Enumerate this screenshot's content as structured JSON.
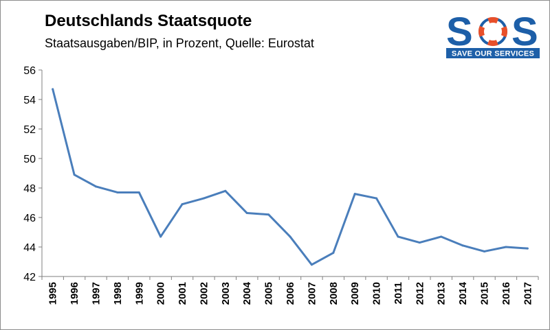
{
  "header": {
    "title": "Deutschlands Staatsquote",
    "subtitle": "Staatsausgaben/BIP, in Prozent, Quelle: Eurostat"
  },
  "logo": {
    "letters": [
      "S",
      "O",
      "S"
    ],
    "tagline": "SAVE OUR SERVICES",
    "brand_blue": "#1d5fa8",
    "ring_orange": "#e8502a"
  },
  "colors": {
    "line": "#4a7ebb",
    "axis": "#7f7f7f"
  },
  "chart_data": {
    "type": "line",
    "title": "Deutschlands Staatsquote",
    "subtitle": "Staatsausgaben/BIP, in Prozent, Quelle: Eurostat",
    "xlabel": "",
    "ylabel": "",
    "categories": [
      "1995",
      "1996",
      "1997",
      "1998",
      "1999",
      "2000",
      "2001",
      "2002",
      "2003",
      "2004",
      "2005",
      "2006",
      "2007",
      "2008",
      "2009",
      "2010",
      "2011",
      "2012",
      "2013",
      "2014",
      "2015",
      "2016",
      "2017"
    ],
    "series": [
      {
        "values": [
          54.7,
          48.9,
          48.1,
          47.7,
          47.7,
          44.7,
          46.9,
          47.3,
          47.8,
          46.3,
          46.2,
          44.7,
          42.8,
          43.6,
          47.6,
          47.3,
          44.7,
          44.3,
          44.7,
          44.1,
          43.7,
          44.0,
          43.9
        ]
      }
    ],
    "ylim": [
      42,
      56
    ],
    "yticks": [
      "42",
      "44",
      "46",
      "48",
      "50",
      "52",
      "54",
      "56"
    ],
    "grid": false,
    "legend": "none"
  }
}
